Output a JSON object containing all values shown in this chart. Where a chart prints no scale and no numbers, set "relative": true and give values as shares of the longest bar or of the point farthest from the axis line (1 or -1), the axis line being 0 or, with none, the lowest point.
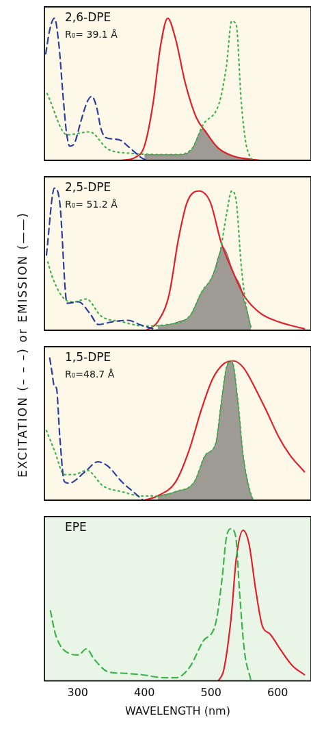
{
  "chart_data": [
    {
      "type": "line",
      "ylabel": "EXCITATION (– – –) or EMISSION (——)",
      "annotations": [
        "2,6-DPE",
        "R₀= 39.1 Å"
      ],
      "relative": true,
      "xlim": [
        250,
        650
      ],
      "xticks": [
        300,
        400,
        500,
        600
      ],
      "tick_labels": false,
      "marker": "none",
      "series": [
        {
          "color": "#2b3f9e",
          "line_style": "dashed",
          "x": [
            252,
            258,
            265,
            272,
            278,
            283,
            288,
            295,
            305,
            315,
            321,
            328,
            335,
            342,
            355,
            365,
            375,
            385,
            395,
            403
          ],
          "values": [
            0.75,
            0.92,
            1.0,
            0.8,
            0.45,
            0.2,
            0.1,
            0.12,
            0.28,
            0.42,
            0.45,
            0.38,
            0.22,
            0.16,
            0.15,
            0.14,
            0.1,
            0.06,
            0.02,
            0
          ]
        },
        {
          "color": "#3cb44b",
          "line_style": "dotted",
          "x": [
            254,
            284,
            318,
            345,
            379,
            447,
            471,
            488,
            512,
            523,
            531,
            538,
            545,
            552,
            558,
            562
          ],
          "values": [
            0.47,
            0.18,
            0.2,
            0.08,
            0.05,
            0.04,
            0.08,
            0.25,
            0.4,
            0.66,
            0.98,
            0.95,
            0.43,
            0.13,
            0.03,
            0
          ]
        },
        {
          "color": "#e0202a",
          "line_style": "solid",
          "x": [
            366,
            386,
            400,
            413,
            424,
            435,
            447,
            461,
            478,
            492,
            510,
            533,
            574
          ],
          "values": [
            0,
            0.02,
            0.1,
            0.4,
            0.8,
            1.0,
            0.85,
            0.55,
            0.3,
            0.2,
            0.09,
            0.03,
            0
          ]
        },
        {
          "type": "area",
          "color": "#4a4a4a",
          "x": [
            400,
            420,
            450,
            470,
            488,
            500,
            510,
            533,
            550,
            560
          ],
          "values": [
            0.04,
            0.04,
            0.04,
            0.07,
            0.22,
            0.15,
            0.09,
            0.03,
            0.01,
            0
          ]
        }
      ]
    },
    {
      "type": "line",
      "annotations": [
        "2,5-DPE",
        "R₀= 51.2 Å"
      ],
      "relative": true,
      "xlim": [
        250,
        650
      ],
      "xticks": [
        300,
        400,
        500,
        600
      ],
      "tick_labels": false,
      "marker": "none",
      "series": [
        {
          "color": "#2b3f9e",
          "line_style": "dashed",
          "x": [
            253,
            265,
            273,
            284,
            301,
            318,
            331,
            352,
            376,
            393,
            413,
            420
          ],
          "values": [
            0.53,
            1.0,
            0.9,
            0.19,
            0.2,
            0.12,
            0.04,
            0.06,
            0.07,
            0.04,
            0.01,
            0
          ]
        },
        {
          "color": "#3cb44b",
          "line_style": "dotted",
          "x": [
            255,
            263,
            280,
            294,
            313,
            335,
            366,
            400,
            434,
            468,
            486,
            502,
            514,
            523,
            531,
            538,
            545,
            553,
            560
          ],
          "values": [
            0.48,
            0.36,
            0.22,
            0.2,
            0.22,
            0.1,
            0.06,
            0.03,
            0.04,
            0.1,
            0.27,
            0.38,
            0.56,
            0.81,
            0.98,
            0.9,
            0.47,
            0.16,
            0.02
          ]
        },
        {
          "color": "#e0202a",
          "line_style": "solid",
          "x": [
            403,
            420,
            437,
            451,
            464,
            482,
            499,
            515,
            533,
            550,
            574,
            601,
            640
          ],
          "values": [
            0,
            0.06,
            0.25,
            0.64,
            0.9,
            0.98,
            0.9,
            0.62,
            0.41,
            0.24,
            0.12,
            0.06,
            0.01
          ]
        },
        {
          "type": "area",
          "color": "#4a4a4a",
          "x": [
            420,
            437,
            451,
            468,
            486,
            502,
            514,
            517,
            523,
            533,
            545,
            550,
            553,
            560
          ],
          "values": [
            0.03,
            0.04,
            0.06,
            0.1,
            0.27,
            0.38,
            0.56,
            0.59,
            0.55,
            0.41,
            0.3,
            0.2,
            0.16,
            0.02
          ]
        }
      ]
    },
    {
      "type": "line",
      "annotations": [
        "1,5-DPE",
        "R₀=48.7 Å"
      ],
      "relative": true,
      "xlim": [
        250,
        650
      ],
      "xticks": [
        300,
        400,
        500,
        600
      ],
      "tick_labels": false,
      "marker": "none",
      "series": [
        {
          "color": "#2b3f9e",
          "line_style": "dashed",
          "x": [
            258,
            261,
            265,
            268,
            273,
            280,
            287,
            311,
            330,
            345,
            366,
            383,
            398
          ],
          "values": [
            1.0,
            0.91,
            0.8,
            0.79,
            0.45,
            0.13,
            0.12,
            0.2,
            0.27,
            0.24,
            0.13,
            0.06,
            0
          ]
        },
        {
          "color": "#3cb44b",
          "line_style": "dotted",
          "x": [
            253,
            265,
            280,
            294,
            314,
            338,
            366,
            396,
            420,
            447,
            475,
            492,
            507,
            516,
            523,
            531,
            540,
            548,
            557,
            563
          ],
          "values": [
            0.49,
            0.35,
            0.18,
            0.18,
            0.21,
            0.1,
            0.06,
            0.03,
            0.03,
            0.06,
            0.13,
            0.32,
            0.4,
            0.71,
            0.93,
            0.98,
            0.71,
            0.32,
            0.09,
            0
          ]
        },
        {
          "color": "#e0202a",
          "line_style": "solid",
          "x": [
            400,
            420,
            447,
            467,
            485,
            502,
            519,
            534,
            549,
            566,
            584,
            601,
            618,
            640
          ],
          "values": [
            0,
            0.03,
            0.13,
            0.35,
            0.63,
            0.85,
            0.96,
            0.98,
            0.93,
            0.79,
            0.62,
            0.45,
            0.32,
            0.2
          ]
        },
        {
          "type": "area",
          "color": "#4a4a4a",
          "x": [
            420,
            447,
            475,
            492,
            507,
            516,
            523,
            531,
            540,
            548,
            557,
            563
          ],
          "values": [
            0.03,
            0.06,
            0.13,
            0.32,
            0.4,
            0.71,
            0.93,
            0.98,
            0.71,
            0.32,
            0.09,
            0
          ]
        }
      ]
    },
    {
      "type": "line",
      "annotations": [
        "EPE"
      ],
      "xlabel": "WAVELENGTH (nm)",
      "relative": true,
      "xlim": [
        250,
        650
      ],
      "xticks": [
        300,
        400,
        500,
        600
      ],
      "tick_labels": "x",
      "marker": "none",
      "series": [
        {
          "color": "#3cb44b",
          "line_style": "dashed",
          "x": [
            259,
            267,
            287,
            301,
            313,
            325,
            345,
            366,
            396,
            430,
            447,
            468,
            488,
            507,
            516,
            523,
            530,
            537,
            543,
            550,
            560
          ],
          "values": [
            0.46,
            0.3,
            0.18,
            0.17,
            0.21,
            0.14,
            0.06,
            0.05,
            0.04,
            0.02,
            0.02,
            0.09,
            0.26,
            0.38,
            0.65,
            0.94,
            1.0,
            0.95,
            0.57,
            0.2,
            0
          ]
        },
        {
          "color": "#e0202a",
          "line_style": "solid",
          "x": [
            511,
            519,
            530,
            538,
            548,
            557,
            567,
            577,
            588,
            605,
            622,
            640
          ],
          "values": [
            0,
            0.07,
            0.41,
            0.81,
            0.99,
            0.9,
            0.6,
            0.36,
            0.31,
            0.2,
            0.1,
            0.04
          ]
        }
      ]
    }
  ]
}
